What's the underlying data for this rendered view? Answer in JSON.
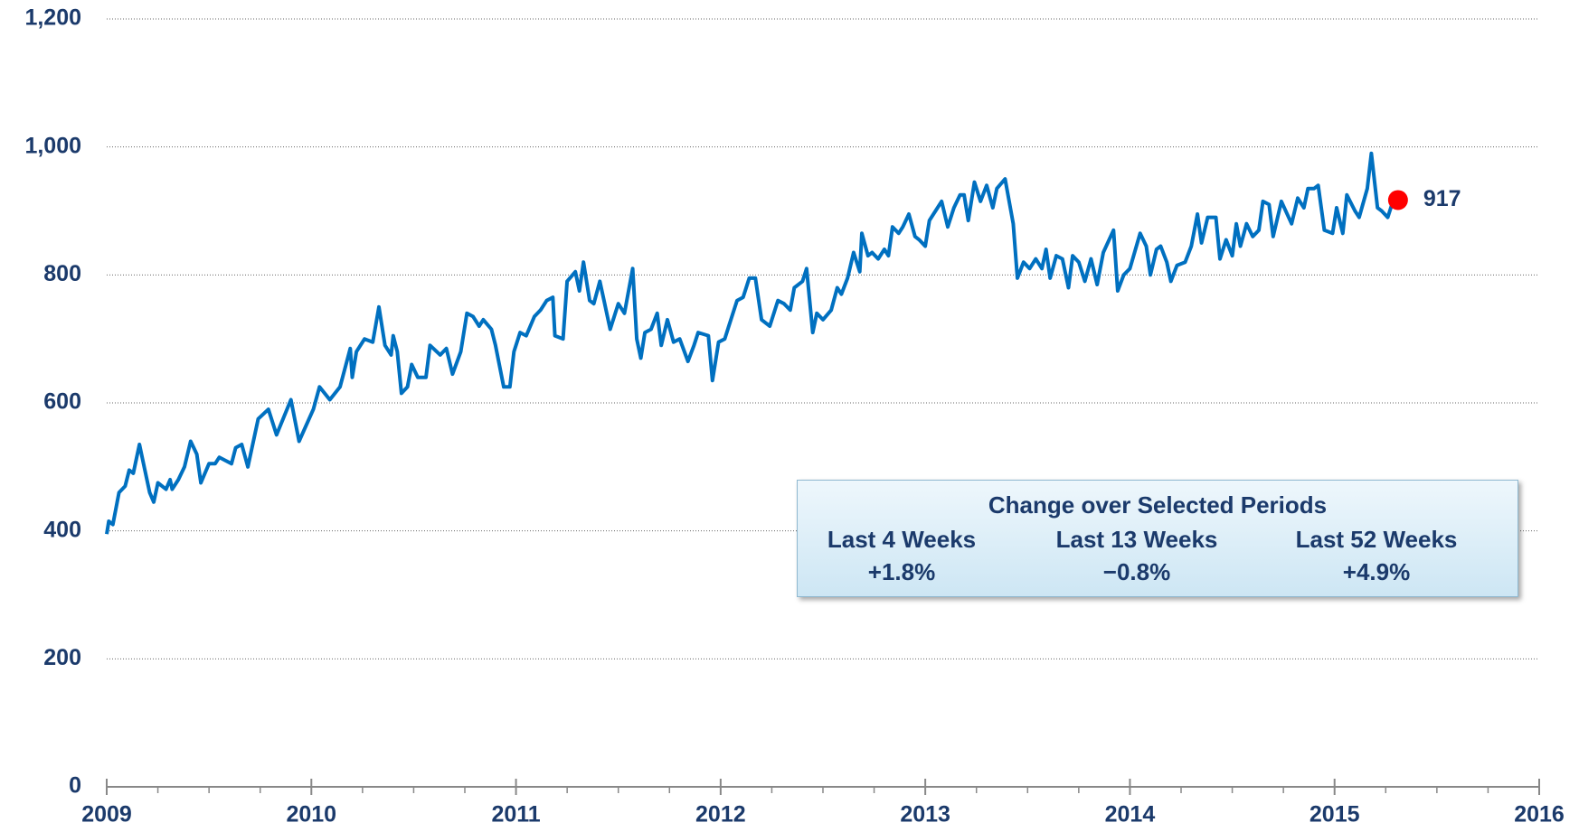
{
  "chart_data": {
    "type": "line",
    "x": [
      2009.0,
      2009.01,
      2009.03,
      2009.06,
      2009.09,
      2009.11,
      2009.13,
      2009.16,
      2009.18,
      2009.21,
      2009.23,
      2009.25,
      2009.29,
      2009.31,
      2009.32,
      2009.35,
      2009.38,
      2009.41,
      2009.44,
      2009.46,
      2009.48,
      2009.5,
      2009.53,
      2009.55,
      2009.58,
      2009.61,
      2009.63,
      2009.66,
      2009.69,
      2009.74,
      2009.79,
      2009.83,
      2009.9,
      2009.94,
      2010.01,
      2010.04,
      2010.09,
      2010.14,
      2010.19,
      2010.2,
      2010.22,
      2010.26,
      2010.3,
      2010.33,
      2010.36,
      2010.39,
      2010.4,
      2010.42,
      2010.44,
      2010.47,
      2010.49,
      2010.52,
      2010.56,
      2010.58,
      2010.63,
      2010.66,
      2010.69,
      2010.73,
      2010.76,
      2010.79,
      2010.82,
      2010.84,
      2010.88,
      2010.9,
      2010.94,
      2010.97,
      2010.99,
      2011.02,
      2011.05,
      2011.09,
      2011.12,
      2011.15,
      2011.18,
      2011.19,
      2011.23,
      2011.25,
      2011.29,
      2011.31,
      2011.33,
      2011.36,
      2011.38,
      2011.41,
      2011.43,
      2011.46,
      2011.5,
      2011.53,
      2011.57,
      2011.59,
      2011.61,
      2011.63,
      2011.66,
      2011.69,
      2011.71,
      2011.74,
      2011.77,
      2011.8,
      2011.84,
      2011.87,
      2011.89,
      2011.94,
      2011.96,
      2011.99,
      2012.02,
      2012.04,
      2012.08,
      2012.11,
      2012.14,
      2012.17,
      2012.2,
      2012.24,
      2012.28,
      2012.31,
      2012.34,
      2012.36,
      2012.4,
      2012.42,
      2012.45,
      2012.47,
      2012.5,
      2012.54,
      2012.57,
      2012.59,
      2012.62,
      2012.65,
      2012.68,
      2012.69,
      2012.72,
      2012.74,
      2012.77,
      2012.8,
      2012.82,
      2012.84,
      2012.87,
      2012.89,
      2012.92,
      2012.95,
      2012.97,
      2013.0,
      2013.02,
      2013.06,
      2013.08,
      2013.11,
      2013.14,
      2013.17,
      2013.19,
      2013.21,
      2013.24,
      2013.27,
      2013.3,
      2013.33,
      2013.35,
      2013.39,
      2013.43,
      2013.45,
      2013.48,
      2013.51,
      2013.54,
      2013.57,
      2013.59,
      2013.61,
      2013.64,
      2013.67,
      2013.7,
      2013.72,
      2013.75,
      2013.78,
      2013.81,
      2013.84,
      2013.87,
      2013.92,
      2013.94,
      2013.97,
      2014.0,
      2014.05,
      2014.08,
      2014.1,
      2014.13,
      2014.15,
      2014.18,
      2014.2,
      2014.23,
      2014.27,
      2014.3,
      2014.33,
      2014.35,
      2014.38,
      2014.42,
      2014.44,
      2014.47,
      2014.5,
      2014.52,
      2014.54,
      2014.57,
      2014.6,
      2014.63,
      2014.65,
      2014.68,
      2014.7,
      2014.74,
      2014.79,
      2014.82,
      2014.85,
      2014.87,
      2014.9,
      2014.92,
      2014.95,
      2014.99,
      2015.01,
      2015.04,
      2015.06,
      2015.1,
      2015.12,
      2015.16,
      2015.18,
      2015.21,
      2015.23,
      2015.26,
      2015.28,
      2015.31
    ],
    "series": [
      {
        "color": "#0070c0",
        "values": [
          395,
          415,
          410,
          460,
          470,
          495,
          490,
          535,
          505,
          460,
          445,
          475,
          465,
          480,
          465,
          480,
          500,
          540,
          520,
          475,
          490,
          505,
          505,
          515,
          510,
          505,
          530,
          535,
          500,
          575,
          590,
          550,
          605,
          540,
          590,
          625,
          605,
          625,
          685,
          640,
          680,
          700,
          695,
          750,
          690,
          675,
          705,
          680,
          615,
          625,
          660,
          640,
          640,
          690,
          675,
          685,
          645,
          680,
          740,
          735,
          720,
          730,
          715,
          690,
          625,
          625,
          680,
          710,
          705,
          735,
          745,
          760,
          765,
          705,
          700,
          790,
          805,
          775,
          820,
          760,
          755,
          790,
          760,
          715,
          755,
          740,
          810,
          700,
          670,
          710,
          715,
          740,
          690,
          730,
          695,
          700,
          665,
          690,
          710,
          705,
          635,
          695,
          700,
          720,
          760,
          765,
          795,
          795,
          730,
          720,
          760,
          755,
          745,
          780,
          790,
          810,
          710,
          740,
          730,
          745,
          780,
          770,
          795,
          835,
          805,
          865,
          830,
          835,
          825,
          840,
          830,
          875,
          865,
          875,
          895,
          860,
          855,
          845,
          885,
          905,
          915,
          875,
          905,
          925,
          925,
          885,
          945,
          915,
          940,
          905,
          935,
          950,
          880,
          795,
          820,
          810,
          825,
          810,
          840,
          795,
          830,
          825,
          780,
          830,
          820,
          790,
          825,
          785,
          835,
          870,
          775,
          800,
          810,
          865,
          845,
          800,
          840,
          845,
          820,
          790,
          815,
          820,
          845,
          895,
          850,
          890,
          890,
          825,
          855,
          830,
          880,
          845,
          880,
          860,
          870,
          915,
          910,
          860,
          915,
          880,
          920,
          905,
          935,
          935,
          940,
          870,
          865,
          905,
          865,
          925,
          900,
          890,
          935,
          990,
          905,
          900,
          890,
          910,
          917
        ]
      }
    ],
    "highlight": {
      "x": 2015.31,
      "value": 917,
      "color": "#ff0000"
    },
    "xlim": [
      2009,
      2016
    ],
    "xticks": [
      2009,
      2010,
      2011,
      2012,
      2013,
      2014,
      2015,
      2016
    ],
    "xminor": 4,
    "ylim": [
      0,
      1200
    ],
    "yticks": [
      0,
      200,
      400,
      600,
      800,
      {
        "value": 1000,
        "label": "1,000"
      },
      {
        "value": 1200,
        "label": "1,200"
      }
    ],
    "grid": true,
    "summary_box": {
      "title": "Change over Selected Periods",
      "periods": [
        {
          "label": "Last 4 Weeks",
          "change": "+1.8%"
        },
        {
          "label": "Last 13 Weeks",
          "change": "−0.8%"
        },
        {
          "label": "Last 52 Weeks",
          "change": "+4.9%"
        }
      ]
    }
  }
}
